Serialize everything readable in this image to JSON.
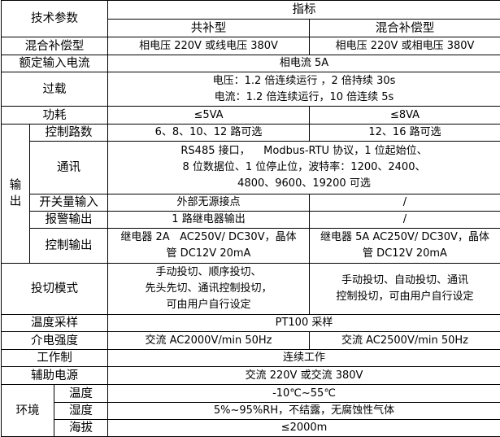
{
  "header": {
    "param": "技术参数",
    "spec": "指标",
    "col_a": "共补型",
    "col_b": "混合补偿型"
  },
  "rows": {
    "mix": {
      "label": "混合补偿型",
      "a": "相电压 220V 或线电压 380V",
      "b": "相电压 220V 或相电压 380V"
    },
    "current": {
      "label": "额定输入电流",
      "value": "相电流 5A"
    },
    "overload": {
      "label": "过载",
      "line1": "电压：1.2 倍连续运行 ，2 倍持续 30s",
      "line2": "电流：1.2 倍连续运行，10 倍连续 5s"
    },
    "power": {
      "label": "功耗",
      "a": "≤5VA",
      "b": "≤8VA"
    },
    "output": {
      "label": "输出",
      "channels": {
        "label": "控制路数",
        "a": "6、8、10、12 路可选",
        "b": "12、16 路可选"
      },
      "comm": {
        "label": "通讯",
        "line1": "RS485 接口，    Modbus-RTU 协议，1 位起始位、",
        "line2": "8 位数据位、1 位停止位，波特率：1200、2400、",
        "line3": "4800、9600、19200 可选"
      },
      "switch_input": {
        "label": "开关量输入",
        "a": "外部无源接点",
        "b": "/"
      },
      "alarm": {
        "label": "报警输出",
        "a": "1 路继电器输出",
        "b": "/"
      },
      "control": {
        "label": "控制输出",
        "a1": "继电器 2A   AC250V/ DC30V，晶体",
        "a2": "管 DC12V 20mA",
        "b1": "继电器 5A AC250V/ DC30V，晶体",
        "b2": "管 DC12V 20mA"
      }
    },
    "switching": {
      "label": "投切模式",
      "a1": "手动投切、顺序投切、",
      "a2": "先头先切、通讯控制投切，",
      "a3": "可由用户自行设定",
      "b1": "手动投切、自动投切、通讯",
      "b2": "控制投切，可由用户自行设定"
    },
    "temp_sampling": {
      "label": "温度采样",
      "value": "PT100 采样"
    },
    "dielectric": {
      "label": "介电强度",
      "a": "交流 AC2000V/min 50Hz",
      "b": "交流 AC2500V/min 50Hz"
    },
    "duty": {
      "label": "工作制",
      "value": "连续工作"
    },
    "aux_power": {
      "label": "辅助电源",
      "value": "交流 220V 或交流 380V"
    },
    "env": {
      "label": "环境",
      "temperature": {
        "label": "温度",
        "value": "-10℃~55℃"
      },
      "humidity": {
        "label": "湿度",
        "value": "5%~95%RH，不结露，无腐蚀性气体"
      },
      "altitude": {
        "label": "海拔",
        "value": "≤2000m"
      }
    }
  }
}
